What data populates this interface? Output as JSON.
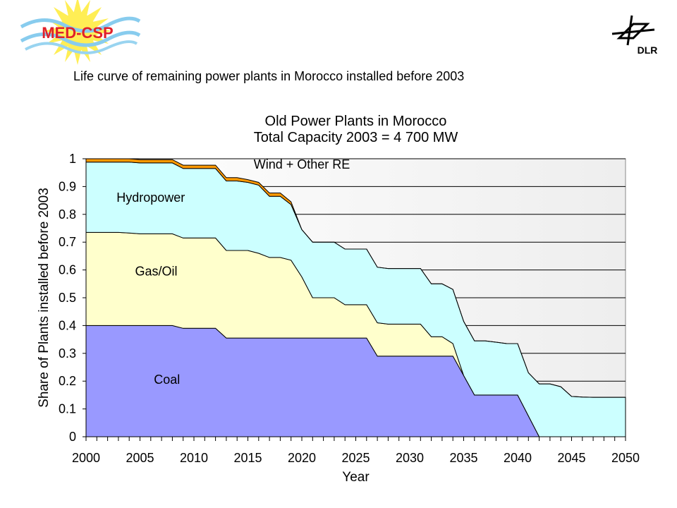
{
  "slide": {
    "title": "Life curve of remaining power plants in Morocco installed before 2003",
    "logo_left_text": "MED-CSP",
    "logo_right_text": "DLR"
  },
  "colors": {
    "coal": "#9999ff",
    "gas_oil": "#ffffcc",
    "hydropower": "#ccffff",
    "wind_other_re": "#ff9900",
    "plot_background_gradient": [
      "#ffffff",
      "#eeeeee"
    ]
  },
  "chart_data": {
    "type": "area",
    "stacked": true,
    "title_lines": [
      "Old Power Plants in Morocco",
      "Total Capacity 2003 = 4 700 MW"
    ],
    "xlabel": "Year",
    "ylabel": "Share of Plants installed before 2003",
    "xlim": [
      2000,
      2050
    ],
    "ylim": [
      0,
      1
    ],
    "xticks": [
      2000,
      2005,
      2010,
      2015,
      2020,
      2025,
      2030,
      2035,
      2040,
      2045,
      2050
    ],
    "yticks": [
      0,
      0.1,
      0.2,
      0.3,
      0.4,
      0.5,
      0.6,
      0.7,
      0.8,
      0.9,
      1
    ],
    "ytick_labels": [
      "0",
      "0.1",
      "0.2",
      "0.3",
      "0.4",
      "0.5",
      "0.6",
      "0.7",
      "0.8",
      "0.9",
      "1"
    ],
    "grid": "horizontal",
    "x": [
      2000,
      2001,
      2002,
      2003,
      2004,
      2005,
      2006,
      2007,
      2008,
      2009,
      2010,
      2011,
      2012,
      2013,
      2014,
      2015,
      2016,
      2017,
      2018,
      2019,
      2020,
      2021,
      2022,
      2023,
      2024,
      2025,
      2026,
      2027,
      2028,
      2029,
      2030,
      2031,
      2032,
      2033,
      2034,
      2035,
      2036,
      2037,
      2038,
      2039,
      2040,
      2041,
      2042,
      2043,
      2044,
      2045,
      2046,
      2047,
      2048,
      2049,
      2050
    ],
    "series": [
      {
        "name": "Coal",
        "values": [
          0.4,
          0.4,
          0.4,
          0.4,
          0.4,
          0.4,
          0.4,
          0.4,
          0.4,
          0.39,
          0.39,
          0.39,
          0.39,
          0.355,
          0.355,
          0.355,
          0.355,
          0.355,
          0.355,
          0.355,
          0.355,
          0.355,
          0.355,
          0.355,
          0.355,
          0.355,
          0.355,
          0.29,
          0.29,
          0.29,
          0.29,
          0.29,
          0.29,
          0.29,
          0.29,
          0.22,
          0.15,
          0.15,
          0.15,
          0.15,
          0.15,
          0.075,
          0,
          0,
          0,
          0,
          0,
          0,
          0,
          0,
          0
        ]
      },
      {
        "name": "Gas/Oil",
        "values": [
          0.335,
          0.335,
          0.335,
          0.335,
          0.333,
          0.33,
          0.33,
          0.33,
          0.33,
          0.325,
          0.325,
          0.325,
          0.325,
          0.315,
          0.315,
          0.315,
          0.305,
          0.29,
          0.29,
          0.28,
          0.22,
          0.145,
          0.145,
          0.145,
          0.12,
          0.12,
          0.12,
          0.12,
          0.115,
          0.115,
          0.115,
          0.115,
          0.07,
          0.07,
          0.045,
          0,
          0,
          0,
          0,
          0,
          0,
          0,
          0,
          0,
          0,
          0,
          0,
          0,
          0,
          0,
          0
        ]
      },
      {
        "name": "Hydropower",
        "values": [
          0.253,
          0.253,
          0.253,
          0.253,
          0.255,
          0.255,
          0.255,
          0.255,
          0.255,
          0.25,
          0.25,
          0.25,
          0.25,
          0.25,
          0.25,
          0.245,
          0.245,
          0.22,
          0.22,
          0.2,
          0.17,
          0.2,
          0.2,
          0.2,
          0.2,
          0.2,
          0.2,
          0.2,
          0.2,
          0.2,
          0.2,
          0.2,
          0.19,
          0.19,
          0.195,
          0.195,
          0.195,
          0.195,
          0.19,
          0.185,
          0.185,
          0.155,
          0.19,
          0.19,
          0.18,
          0.145,
          0.143,
          0.142,
          0.142,
          0.142,
          0.142
        ]
      },
      {
        "name": "Wind + Other RE",
        "values": [
          0.012,
          0.012,
          0.012,
          0.012,
          0.012,
          0.012,
          0.012,
          0.012,
          0.012,
          0.012,
          0.012,
          0.012,
          0.012,
          0.012,
          0.012,
          0.01,
          0.01,
          0.012,
          0.012,
          0.01,
          0,
          0,
          0,
          0,
          0,
          0,
          0,
          0,
          0,
          0,
          0,
          0,
          0,
          0,
          0,
          0,
          0,
          0,
          0,
          0,
          0,
          0,
          0,
          0,
          0,
          0,
          0,
          0,
          0,
          0,
          0
        ]
      }
    ],
    "annotations": [
      {
        "text": "Coal",
        "x": 2007.5,
        "y": 0.19
      },
      {
        "text": "Gas/Oil",
        "x": 2006.5,
        "y": 0.58
      },
      {
        "text": "Hydropower",
        "x": 2006,
        "y": 0.845
      },
      {
        "text": "Wind + Other RE",
        "x": 2020,
        "y": 0.965
      }
    ]
  }
}
